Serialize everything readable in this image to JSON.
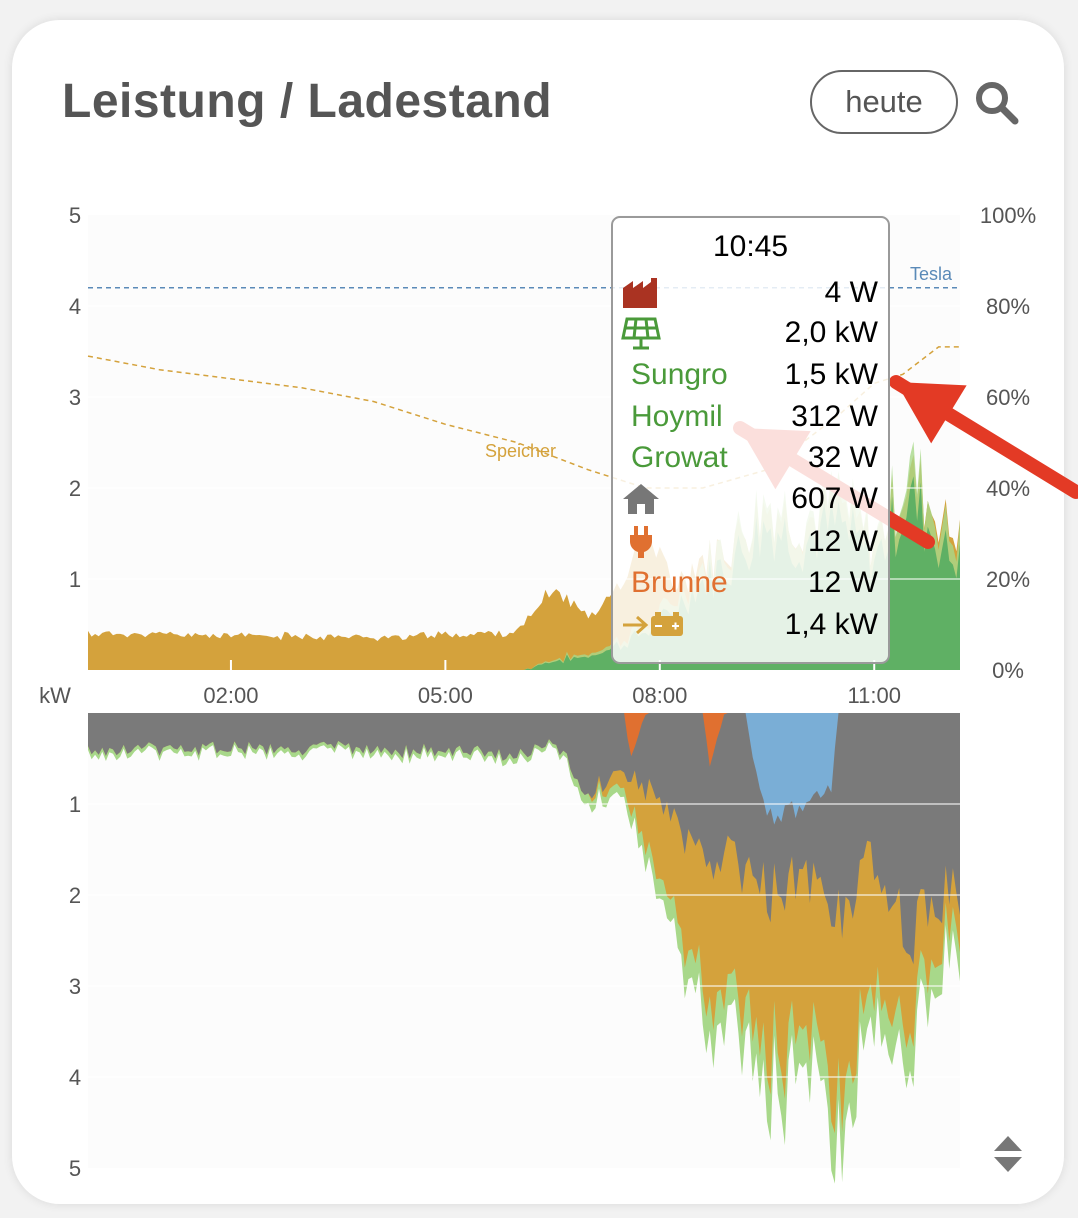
{
  "header": {
    "title": "Leistung / Ladestand",
    "period_button": "heute"
  },
  "colors": {
    "grid": "#aa3322",
    "pv": "#5fb064",
    "pv_light": "#a8d88a",
    "storage": "#d4a23c",
    "house": "#7a7a7a",
    "wallbox": "#e07030",
    "car": "#7aaed6",
    "tesla_line": "#5a8ab8"
  },
  "tooltip": {
    "time": "10:45",
    "rows": [
      {
        "icon": "factory-icon",
        "value": "4 W",
        "color": "#aa3322"
      },
      {
        "icon": "solar-panel-icon",
        "value": "2,0 kW",
        "color": "#4a9a3a"
      },
      {
        "name": "Sungro",
        "value": "1,5 kW",
        "color": "#4a9a3a"
      },
      {
        "name": "Hoymil",
        "value": "312 W",
        "color": "#4a9a3a"
      },
      {
        "name": "Growat",
        "value": "32 W",
        "color": "#4a9a3a"
      },
      {
        "icon": "house-icon",
        "value": "607 W",
        "color": "#777777"
      },
      {
        "icon": "plug-icon",
        "value": "12 W",
        "color": "#e07030"
      },
      {
        "name": "Brunne",
        "value": "12 W",
        "color": "#e07030"
      },
      {
        "icon": "battery-charge-icon",
        "value": "1,4 kW",
        "color": "#d4a23c"
      }
    ]
  },
  "chart_data": {
    "type": "area",
    "x_unit_label": "kW",
    "x_ticks": [
      "02:00",
      "05:00",
      "08:00",
      "11:00"
    ],
    "x_range_hours": [
      0,
      12.2
    ],
    "top_y_ticks": [
      "5",
      "4",
      "3",
      "2",
      "1"
    ],
    "top_ylim": [
      0,
      5
    ],
    "bottom_y_ticks": [
      "1",
      "2",
      "3",
      "4",
      "5"
    ],
    "bottom_ylim": [
      0,
      5
    ],
    "right_y_ticks": [
      "100%",
      "80%",
      "60%",
      "40%",
      "20%",
      "0%"
    ],
    "right_ylim": [
      0,
      100
    ],
    "annotations": {
      "tesla": "Tesla",
      "speicher": "Speicher"
    },
    "tesla_soc_percent": 84,
    "storage_soc": [
      [
        0,
        69
      ],
      [
        1,
        66
      ],
      [
        2,
        64
      ],
      [
        3,
        62
      ],
      [
        4,
        59
      ],
      [
        5,
        54
      ],
      [
        6,
        50
      ],
      [
        7,
        44
      ],
      [
        7.8,
        40
      ],
      [
        8.6,
        40
      ],
      [
        9.5,
        44
      ],
      [
        10.5,
        56
      ],
      [
        11,
        63
      ],
      [
        11.4,
        65
      ],
      [
        11.9,
        71
      ],
      [
        12.2,
        71
      ]
    ],
    "series": [
      {
        "name": "PV",
        "values": [
          [
            0,
            0
          ],
          [
            6.1,
            0
          ],
          [
            6.5,
            0.1
          ],
          [
            7,
            0.15
          ],
          [
            7.5,
            0.3
          ],
          [
            8,
            0.5
          ],
          [
            8.5,
            0.9
          ],
          [
            9,
            1.2
          ],
          [
            9.5,
            1.6
          ],
          [
            10,
            1.4
          ],
          [
            10.5,
            1.6
          ],
          [
            11,
            1.2
          ],
          [
            11.5,
            1.9
          ],
          [
            12,
            1.3
          ],
          [
            12.2,
            1.2
          ]
        ]
      },
      {
        "name": "Speicher-Entladung",
        "values": [
          [
            0,
            0.4
          ],
          [
            2,
            0.38
          ],
          [
            4,
            0.36
          ],
          [
            5.5,
            0.4
          ],
          [
            6,
            0.42
          ],
          [
            6.5,
            0.8
          ],
          [
            7,
            0.45
          ],
          [
            7.5,
            0.7
          ],
          [
            7.8,
            1.1
          ],
          [
            8.2,
            0.3
          ],
          [
            9,
            0.2
          ],
          [
            10,
            0.2
          ],
          [
            11,
            0.2
          ],
          [
            12,
            0.3
          ]
        ]
      },
      {
        "name": "Verbrauch",
        "values": [
          [
            0,
            0.4
          ],
          [
            2,
            0.38
          ],
          [
            4,
            0.4
          ],
          [
            5.5,
            0.45
          ],
          [
            6,
            0.5
          ],
          [
            6.5,
            0.3
          ],
          [
            7,
            0.9
          ],
          [
            7.5,
            0.6
          ],
          [
            8,
            1.0
          ],
          [
            8.5,
            1.5
          ],
          [
            9,
            1.6
          ],
          [
            9.5,
            2.0
          ],
          [
            10,
            1.8
          ],
          [
            10.5,
            2.2
          ],
          [
            11,
            1.6
          ],
          [
            11.5,
            2.4
          ],
          [
            12,
            2.0
          ]
        ]
      },
      {
        "name": "Speicher-Ladung",
        "values": [
          [
            0,
            0
          ],
          [
            7,
            0
          ],
          [
            7.5,
            0.2
          ],
          [
            8,
            0.8
          ],
          [
            8.5,
            1.4
          ],
          [
            9,
            1.6
          ],
          [
            9.5,
            1.9
          ],
          [
            10,
            1.6
          ],
          [
            10.5,
            2.0
          ],
          [
            11,
            1.3
          ],
          [
            11.5,
            0.9
          ],
          [
            12,
            0.4
          ]
        ]
      },
      {
        "name": "Auto",
        "values": [
          [
            0,
            0
          ],
          [
            9.2,
            0
          ],
          [
            9.4,
            0.9
          ],
          [
            9.6,
            1.2
          ],
          [
            10,
            1.0
          ],
          [
            10.4,
            0.8
          ],
          [
            10.5,
            0
          ]
        ]
      }
    ]
  }
}
